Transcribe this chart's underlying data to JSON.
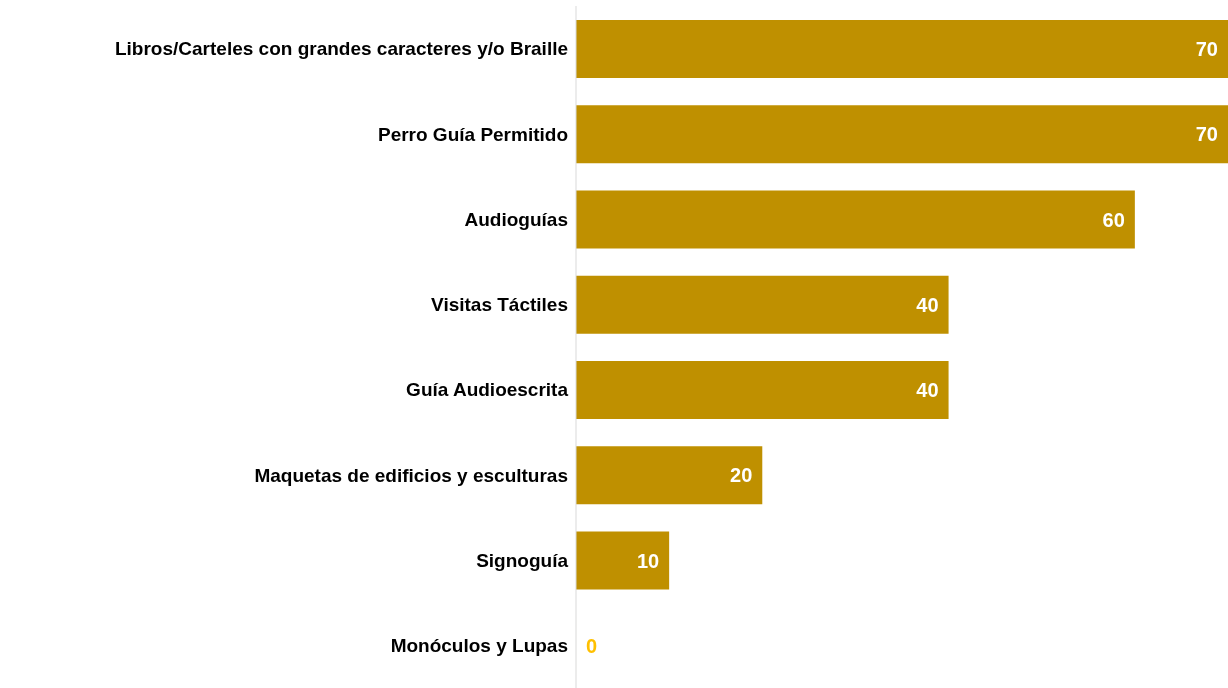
{
  "chart_data": {
    "type": "bar",
    "orientation": "horizontal",
    "categories": [
      "Libros/Carteles con grandes caracteres y/o Braille",
      "Perro Guía Permitido",
      "Audioguías",
      "Visitas Táctiles",
      "Guía Audioescrita",
      "Maquetas de edificios y esculturas",
      "Signoguía",
      "Monóculos y Lupas"
    ],
    "values": [
      70,
      70,
      60,
      40,
      40,
      20,
      10,
      0
    ],
    "color": "#bf9000",
    "data_labels": true,
    "grid": false,
    "legend": false
  }
}
